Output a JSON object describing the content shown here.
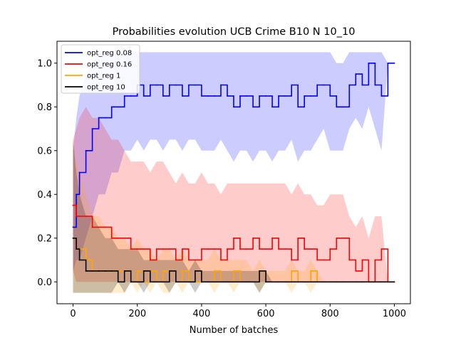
{
  "chart_data": {
    "type": "line",
    "title": "Probabilities evolution UCB Crime B10 N 10_10",
    "xlabel": "Number of batches",
    "ylabel": "",
    "xlim": [
      -50,
      1050
    ],
    "ylim": [
      -0.1,
      1.1
    ],
    "xticks": [
      0,
      200,
      400,
      600,
      800,
      1000
    ],
    "yticks": [
      0.0,
      0.2,
      0.4,
      0.6,
      0.8,
      1.0
    ],
    "grid": false,
    "legend_position": "top-left",
    "band_note": "Each series is drawn with a shaded min–max band around the mean line",
    "series": [
      {
        "name": "opt_reg 0.08",
        "color": "#0000ff",
        "x": [
          0,
          10,
          20,
          40,
          60,
          80,
          100,
          120,
          140,
          160,
          180,
          200,
          220,
          240,
          260,
          280,
          300,
          320,
          340,
          360,
          380,
          400,
          420,
          440,
          460,
          480,
          500,
          520,
          540,
          560,
          580,
          600,
          620,
          640,
          660,
          680,
          700,
          720,
          740,
          760,
          780,
          800,
          820,
          840,
          860,
          880,
          900,
          920,
          940,
          960,
          980,
          1000
        ],
        "mean": [
          0.25,
          0.4,
          0.5,
          0.6,
          0.7,
          0.75,
          0.75,
          0.8,
          0.8,
          0.85,
          0.85,
          0.9,
          0.85,
          0.9,
          0.9,
          0.85,
          0.9,
          0.9,
          0.85,
          0.9,
          0.9,
          0.85,
          0.85,
          0.85,
          0.9,
          0.85,
          0.8,
          0.85,
          0.85,
          0.8,
          0.85,
          0.85,
          0.8,
          0.85,
          0.85,
          0.9,
          0.8,
          0.85,
          0.85,
          0.9,
          0.9,
          0.85,
          0.8,
          0.8,
          0.9,
          0.95,
          0.9,
          1.0,
          0.9,
          0.85,
          1.0,
          1.0
        ],
        "low": [
          0.05,
          0.1,
          0.1,
          0.2,
          0.3,
          0.4,
          0.4,
          0.5,
          0.5,
          0.6,
          0.6,
          0.65,
          0.6,
          0.65,
          0.65,
          0.6,
          0.65,
          0.65,
          0.6,
          0.65,
          0.65,
          0.6,
          0.6,
          0.6,
          0.65,
          0.6,
          0.55,
          0.6,
          0.6,
          0.55,
          0.6,
          0.6,
          0.55,
          0.6,
          0.6,
          0.65,
          0.55,
          0.6,
          0.6,
          0.65,
          0.7,
          0.6,
          0.6,
          0.6,
          0.7,
          0.75,
          0.7,
          0.8,
          0.7,
          0.6,
          1.0,
          1.0
        ],
        "high": [
          0.6,
          0.75,
          0.85,
          0.95,
          1.0,
          1.05,
          1.05,
          1.05,
          1.05,
          1.05,
          1.05,
          1.05,
          1.05,
          1.05,
          1.05,
          1.05,
          1.05,
          1.05,
          1.05,
          1.05,
          1.05,
          1.05,
          1.05,
          1.05,
          1.05,
          1.05,
          1.05,
          1.05,
          1.05,
          1.05,
          1.05,
          1.05,
          1.05,
          1.05,
          1.05,
          1.05,
          1.05,
          1.05,
          1.05,
          1.05,
          1.05,
          1.05,
          1.0,
          1.0,
          1.05,
          1.05,
          1.05,
          1.05,
          1.05,
          1.05,
          1.0,
          1.0
        ]
      },
      {
        "name": "opt_reg 0.16",
        "color": "#ff0000",
        "x": [
          0,
          10,
          20,
          40,
          60,
          80,
          100,
          120,
          140,
          160,
          180,
          200,
          220,
          240,
          260,
          280,
          300,
          320,
          340,
          360,
          380,
          400,
          420,
          440,
          460,
          480,
          500,
          520,
          540,
          560,
          580,
          600,
          620,
          640,
          660,
          680,
          700,
          720,
          740,
          760,
          780,
          800,
          820,
          840,
          860,
          880,
          900,
          920,
          940,
          960,
          980,
          1000
        ],
        "mean": [
          0.35,
          0.3,
          0.3,
          0.3,
          0.25,
          0.25,
          0.25,
          0.2,
          0.2,
          0.2,
          0.15,
          0.15,
          0.15,
          0.1,
          0.15,
          0.15,
          0.15,
          0.1,
          0.15,
          0.1,
          0.1,
          0.15,
          0.15,
          0.15,
          0.1,
          0.15,
          0.2,
          0.15,
          0.15,
          0.2,
          0.15,
          0.15,
          0.2,
          0.15,
          0.15,
          0.1,
          0.2,
          0.15,
          0.15,
          0.1,
          0.1,
          0.15,
          0.2,
          0.2,
          0.1,
          0.05,
          0.1,
          0.0,
          0.1,
          0.15,
          0.0,
          0.0
        ],
        "low": [
          0.05,
          0.0,
          0.0,
          0.0,
          0.0,
          0.0,
          0.0,
          0.0,
          0.0,
          0.0,
          0.0,
          0.0,
          0.0,
          0.0,
          0.0,
          0.0,
          0.0,
          0.0,
          0.0,
          0.0,
          0.0,
          0.0,
          0.0,
          0.0,
          0.0,
          0.0,
          0.0,
          0.0,
          0.0,
          0.0,
          0.0,
          0.0,
          0.0,
          0.0,
          0.0,
          0.0,
          0.0,
          0.0,
          0.0,
          0.0,
          0.0,
          0.0,
          0.0,
          0.0,
          0.0,
          0.0,
          0.0,
          0.0,
          0.0,
          0.0,
          0.0,
          0.0
        ],
        "high": [
          0.65,
          0.7,
          0.75,
          0.8,
          0.75,
          0.75,
          0.7,
          0.65,
          0.65,
          0.6,
          0.55,
          0.55,
          0.55,
          0.5,
          0.55,
          0.55,
          0.5,
          0.45,
          0.5,
          0.45,
          0.45,
          0.5,
          0.45,
          0.45,
          0.4,
          0.45,
          0.45,
          0.45,
          0.45,
          0.45,
          0.45,
          0.45,
          0.45,
          0.45,
          0.45,
          0.4,
          0.45,
          0.4,
          0.4,
          0.35,
          0.35,
          0.4,
          0.4,
          0.4,
          0.3,
          0.25,
          0.3,
          0.2,
          0.3,
          0.3,
          0.0,
          0.0
        ]
      },
      {
        "name": "opt_reg 1",
        "color": "#ffa500",
        "x": [
          0,
          10,
          20,
          40,
          60,
          80,
          100,
          120,
          140,
          160,
          180,
          200,
          220,
          240,
          260,
          280,
          300,
          320,
          340,
          360,
          380,
          400,
          420,
          440,
          460,
          480,
          500,
          520,
          540,
          560,
          580,
          600,
          620,
          640,
          660,
          680,
          700,
          720,
          740,
          760,
          780,
          800,
          820,
          840,
          860,
          880,
          900,
          920,
          940,
          960,
          980,
          1000
        ],
        "mean": [
          0.2,
          0.15,
          0.15,
          0.1,
          0.05,
          0.05,
          0.05,
          0.05,
          0.05,
          0.05,
          0.0,
          0.05,
          0.0,
          0.05,
          0.0,
          0.05,
          0.05,
          0.0,
          0.05,
          0.0,
          0.0,
          0.0,
          0.0,
          0.05,
          0.0,
          0.0,
          0.05,
          0.0,
          0.0,
          0.0,
          0.05,
          0.0,
          0.0,
          0.0,
          0.0,
          0.05,
          0.0,
          0.0,
          0.05,
          0.0,
          0.0,
          0.0,
          0.0,
          0.0,
          0.0,
          0.0,
          0.0,
          0.0,
          0.0,
          0.0,
          0.0,
          0.0
        ],
        "low": [
          -0.05,
          -0.05,
          -0.05,
          -0.05,
          -0.05,
          -0.05,
          -0.05,
          -0.05,
          -0.05,
          -0.05,
          0.0,
          -0.05,
          0.0,
          -0.05,
          0.0,
          -0.05,
          -0.05,
          0.0,
          -0.05,
          0.0,
          0.0,
          0.0,
          0.0,
          -0.05,
          0.0,
          0.0,
          -0.05,
          0.0,
          0.0,
          0.0,
          -0.05,
          0.0,
          0.0,
          0.0,
          0.0,
          -0.05,
          0.0,
          0.0,
          -0.05,
          0.0,
          0.0,
          0.0,
          0.0,
          0.0,
          0.0,
          0.0,
          0.0,
          0.0,
          0.0,
          0.0,
          0.0,
          0.0
        ],
        "high": [
          0.65,
          0.55,
          0.5,
          0.4,
          0.3,
          0.3,
          0.25,
          0.25,
          0.2,
          0.2,
          0.15,
          0.2,
          0.15,
          0.15,
          0.1,
          0.15,
          0.15,
          0.1,
          0.15,
          0.1,
          0.1,
          0.1,
          0.1,
          0.15,
          0.1,
          0.1,
          0.1,
          0.1,
          0.1,
          0.05,
          0.1,
          0.05,
          0.05,
          0.05,
          0.05,
          0.1,
          0.05,
          0.05,
          0.1,
          0.05,
          0.0,
          0.0,
          0.0,
          0.0,
          0.0,
          0.0,
          0.0,
          0.0,
          0.0,
          0.0,
          0.0,
          0.0
        ]
      },
      {
        "name": "opt_reg 10",
        "color": "#000000",
        "x": [
          0,
          10,
          20,
          40,
          60,
          80,
          100,
          120,
          140,
          160,
          180,
          200,
          220,
          240,
          260,
          280,
          300,
          320,
          340,
          360,
          380,
          400,
          420,
          440,
          460,
          480,
          500,
          520,
          540,
          560,
          580,
          600,
          620,
          640,
          660,
          680,
          700,
          720,
          740,
          760,
          780,
          800,
          820,
          840,
          860,
          880,
          900,
          920,
          940,
          960,
          980,
          1000
        ],
        "mean": [
          0.2,
          0.15,
          0.1,
          0.05,
          0.05,
          0.05,
          0.05,
          0.05,
          0.0,
          0.05,
          0.0,
          0.0,
          0.05,
          0.0,
          0.0,
          0.0,
          0.05,
          0.0,
          0.0,
          0.0,
          0.05,
          0.0,
          0.0,
          0.0,
          0.0,
          0.0,
          0.0,
          0.0,
          0.0,
          0.0,
          0.05,
          0.0,
          0.0,
          0.0,
          0.0,
          0.0,
          0.0,
          0.0,
          0.0,
          0.0,
          0.0,
          0.0,
          0.0,
          0.0,
          0.0,
          0.0,
          0.0,
          0.0,
          0.0,
          0.0,
          0.0,
          0.0
        ],
        "low": [
          -0.05,
          -0.05,
          -0.05,
          -0.05,
          -0.05,
          -0.05,
          -0.05,
          -0.05,
          0.0,
          -0.05,
          0.0,
          0.0,
          -0.05,
          0.0,
          0.0,
          0.0,
          -0.05,
          0.0,
          0.0,
          0.0,
          -0.05,
          0.0,
          0.0,
          0.0,
          0.0,
          0.0,
          0.0,
          0.0,
          0.0,
          0.0,
          -0.05,
          0.0,
          0.0,
          0.0,
          0.0,
          0.0,
          0.0,
          0.0,
          0.0,
          0.0,
          0.0,
          0.0,
          0.0,
          0.0,
          0.0,
          0.0,
          0.0,
          0.0,
          0.0,
          0.0,
          0.0,
          0.0
        ],
        "high": [
          0.65,
          0.5,
          0.4,
          0.3,
          0.3,
          0.25,
          0.2,
          0.2,
          0.15,
          0.15,
          0.15,
          0.15,
          0.1,
          0.1,
          0.1,
          0.1,
          0.1,
          0.1,
          0.1,
          0.05,
          0.1,
          0.05,
          0.05,
          0.05,
          0.05,
          0.05,
          0.05,
          0.05,
          0.05,
          0.05,
          0.05,
          0.05,
          0.0,
          0.0,
          0.0,
          0.0,
          0.0,
          0.0,
          0.0,
          0.0,
          0.0,
          0.0,
          0.0,
          0.0,
          0.0,
          0.0,
          0.0,
          0.0,
          0.0,
          0.0,
          0.0,
          0.0
        ]
      }
    ]
  }
}
